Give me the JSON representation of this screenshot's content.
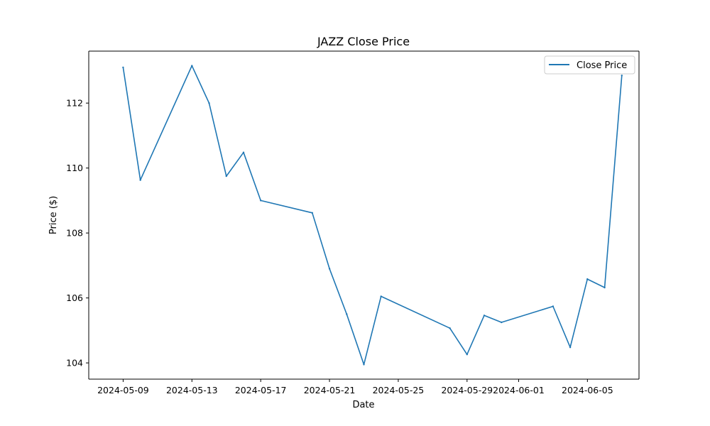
{
  "chart_data": {
    "type": "line",
    "title": "JAZZ Close Price",
    "xlabel": "Date",
    "ylabel": "Price ($)",
    "x_tick_labels": [
      "2024-05-09",
      "2024-05-13",
      "2024-05-17",
      "2024-05-21",
      "2024-05-25",
      "2024-05-29",
      "2024-06-01",
      "2024-06-05"
    ],
    "y_ticks": [
      104,
      106,
      108,
      110,
      112
    ],
    "xlim": [
      "2024-05-07",
      "2024-06-08"
    ],
    "ylim": [
      103.5,
      113.6
    ],
    "grid": false,
    "legend": "top-right",
    "colors": {
      "series": "#1f77b4"
    },
    "series": [
      {
        "name": "Close Price",
        "x": [
          "2024-05-09",
          "2024-05-10",
          "2024-05-13",
          "2024-05-14",
          "2024-05-15",
          "2024-05-16",
          "2024-05-17",
          "2024-05-20",
          "2024-05-21",
          "2024-05-22",
          "2024-05-23",
          "2024-05-24",
          "2024-05-28",
          "2024-05-29",
          "2024-05-30",
          "2024-05-31",
          "2024-06-03",
          "2024-06-04",
          "2024-06-05",
          "2024-06-06",
          "2024-06-07"
        ],
        "values": [
          113.1,
          109.63,
          113.15,
          112.0,
          109.75,
          110.48,
          109.0,
          108.62,
          106.9,
          105.5,
          103.95,
          106.05,
          105.07,
          104.26,
          105.46,
          105.25,
          105.74,
          104.48,
          106.58,
          106.32,
          112.85
        ]
      }
    ]
  }
}
